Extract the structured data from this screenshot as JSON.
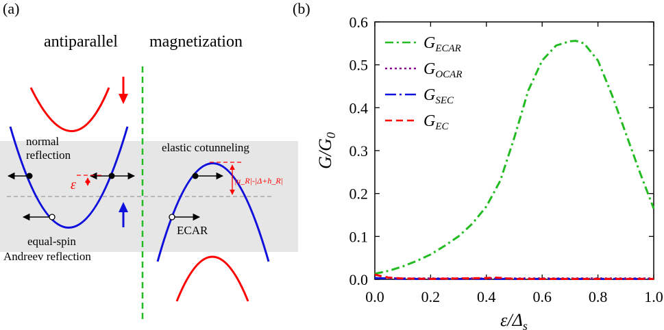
{
  "panel_a": {
    "label": "(a)",
    "title_left": "antiparallel",
    "title_right": "magnetization",
    "normal_reflection": [
      "normal",
      "reflection"
    ],
    "elastic_cotunneling": "elastic cotunneling",
    "epsilon": "ε",
    "energy_gap": "|u_R|-|Δ+h_R|",
    "ecar": "ECAR",
    "equal_spin": [
      "equal-spin",
      "Andreev reflection"
    ],
    "colors": {
      "band_up": "#ff0000",
      "band_down": "#1010dd",
      "divider": "#22bb22",
      "shade": "#e6e6e6",
      "arrow": "#000000",
      "annotation": "#ff0000"
    }
  },
  "panel_b": {
    "label": "(b)"
  },
  "chart_data": {
    "type": "line",
    "xlabel": "ε/Δs",
    "ylabel": "G/G0",
    "xlim": [
      0.0,
      1.0
    ],
    "ylim": [
      0.0,
      0.6
    ],
    "xticks": [
      "0.0",
      "0.2",
      "0.4",
      "0.6",
      "0.8",
      "1.0"
    ],
    "yticks": [
      "0.0",
      "0.1",
      "0.2",
      "0.3",
      "0.4",
      "0.5",
      "0.6"
    ],
    "legend_position": "top-left",
    "grid": false,
    "series": [
      {
        "name": "G_ECAR",
        "color": "#22bb22",
        "dash": "dash-dot",
        "x": [
          0.0,
          0.05,
          0.1,
          0.15,
          0.2,
          0.25,
          0.3,
          0.35,
          0.4,
          0.45,
          0.5,
          0.55,
          0.6,
          0.65,
          0.7,
          0.72,
          0.75,
          0.8,
          0.85,
          0.9,
          0.95,
          1.0
        ],
        "y": [
          0.013,
          0.02,
          0.03,
          0.043,
          0.058,
          0.078,
          0.1,
          0.13,
          0.17,
          0.23,
          0.33,
          0.44,
          0.51,
          0.545,
          0.555,
          0.556,
          0.55,
          0.51,
          0.43,
          0.34,
          0.25,
          0.165
        ]
      },
      {
        "name": "G_OCAR",
        "color": "#880088",
        "dash": "dotted",
        "x": [
          0.0,
          0.1,
          0.2,
          0.3,
          0.4,
          0.5,
          0.6,
          0.7,
          0.8,
          0.9,
          1.0
        ],
        "y": [
          0.003,
          0.002,
          0.002,
          0.002,
          0.002,
          0.002,
          0.002,
          0.002,
          0.002,
          0.002,
          0.002
        ]
      },
      {
        "name": "G_SEC",
        "color": "#1010dd",
        "dash": "long-dash-dot",
        "x": [
          0.0,
          0.1,
          0.2,
          0.3,
          0.4,
          0.5,
          0.6,
          0.7,
          0.8,
          0.9,
          1.0
        ],
        "y": [
          0.003,
          0.001,
          0.001,
          0.001,
          0.001,
          0.001,
          0.001,
          0.001,
          0.001,
          0.001,
          0.001
        ]
      },
      {
        "name": "G_EC",
        "color": "#ff0000",
        "dash": "dashed",
        "x": [
          0.0,
          0.02,
          0.05,
          0.1,
          0.2,
          0.3,
          0.4,
          0.43,
          0.46,
          0.5,
          0.6,
          0.7,
          0.8,
          0.9,
          1.0
        ],
        "y": [
          0.011,
          0.008,
          0.004,
          0.002,
          0.001,
          0.002,
          0.003,
          0.004,
          0.003,
          0.001,
          0.001,
          0.001,
          0.001,
          0.001,
          0.001
        ]
      }
    ]
  }
}
